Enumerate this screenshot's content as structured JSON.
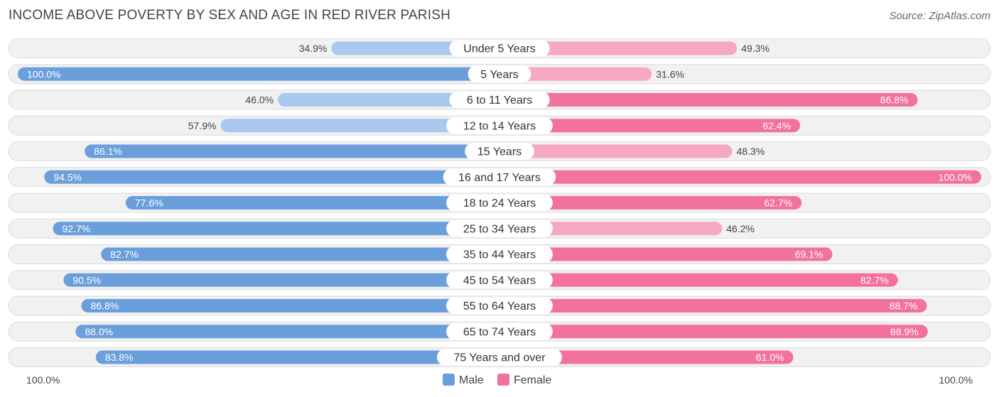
{
  "title": "INCOME ABOVE POVERTY BY SEX AND AGE IN RED RIVER PARISH",
  "source": "Source: ZipAtlas.com",
  "colors": {
    "male_strong": "#6a9fdc",
    "male_light": "#a8c8ed",
    "female_strong": "#f2729b",
    "female_light": "#f7a8c1"
  },
  "chart_data": {
    "type": "bar",
    "orientation": "horizontal-diverging",
    "title": "INCOME ABOVE POVERTY BY SEX AND AGE IN RED RIVER PARISH",
    "categories": [
      "Under 5 Years",
      "5 Years",
      "6 to 11 Years",
      "12 to 14 Years",
      "15 Years",
      "16 and 17 Years",
      "18 to 24 Years",
      "25 to 34 Years",
      "35 to 44 Years",
      "45 to 54 Years",
      "55 to 64 Years",
      "65 to 74 Years",
      "75 Years and over"
    ],
    "series": [
      {
        "name": "Male",
        "values": [
          34.9,
          100.0,
          46.0,
          57.9,
          86.1,
          94.5,
          77.6,
          92.7,
          82.7,
          90.5,
          86.8,
          88.0,
          83.8
        ],
        "labels": [
          "34.9%",
          "100.0%",
          "46.0%",
          "57.9%",
          "86.1%",
          "94.5%",
          "77.6%",
          "92.7%",
          "82.7%",
          "90.5%",
          "86.8%",
          "88.0%",
          "83.8%"
        ]
      },
      {
        "name": "Female",
        "values": [
          49.3,
          31.6,
          86.8,
          62.4,
          48.3,
          100.0,
          62.7,
          46.2,
          69.1,
          82.7,
          88.7,
          88.9,
          61.0
        ],
        "labels": [
          "49.3%",
          "31.6%",
          "86.8%",
          "62.4%",
          "48.3%",
          "100.0%",
          "62.7%",
          "46.2%",
          "69.1%",
          "82.7%",
          "88.7%",
          "88.9%",
          "61.0%"
        ]
      }
    ],
    "xlim": [
      0,
      100
    ],
    "axis_left_label": "100.0%",
    "axis_right_label": "100.0%",
    "legend": [
      "Male",
      "Female"
    ],
    "legend_position": "bottom-center"
  }
}
